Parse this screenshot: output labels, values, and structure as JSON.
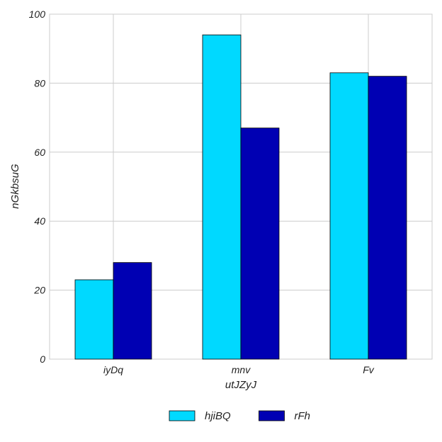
{
  "chart_data": {
    "type": "bar",
    "categories": [
      "iyDq",
      "mnv",
      "Fv"
    ],
    "series": [
      {
        "name": "hjiBQ",
        "values": [
          23,
          94,
          83
        ],
        "color": "#00d9ff"
      },
      {
        "name": "rFh",
        "values": [
          28,
          67,
          82
        ],
        "color": "#0000b3"
      }
    ],
    "title": "",
    "xlabel": "utJZyJ",
    "ylabel": "nGkbsuG",
    "ylim": [
      0,
      100
    ],
    "yticks": [
      0,
      20,
      40,
      60,
      80,
      100
    ],
    "grid": true,
    "legend": "bottom-center"
  }
}
